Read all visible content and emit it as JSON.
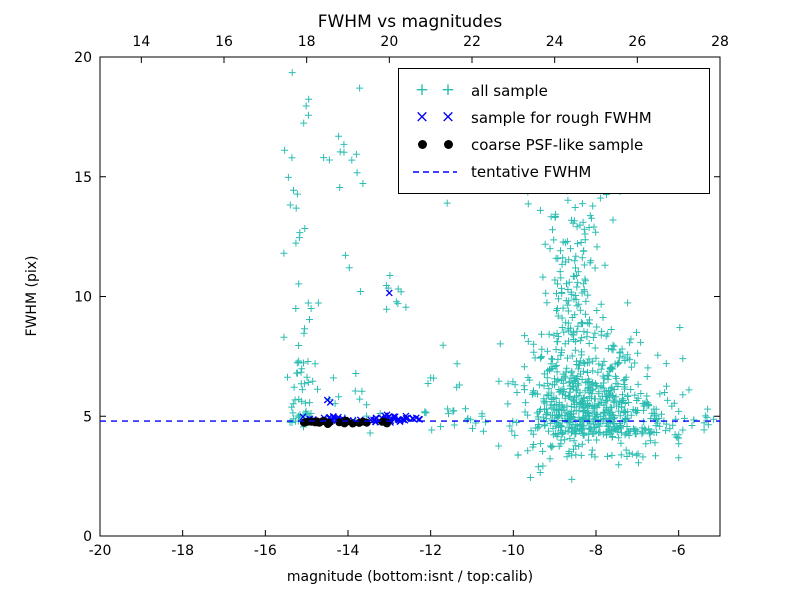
{
  "figure": {
    "title": "FWHM vs magnitudes"
  },
  "axes": {
    "xlabel": "magnitude (bottom:isnt / top:calib)",
    "ylabel": "FWHM (pix)",
    "xlim": [
      -20,
      -5
    ],
    "ylim": [
      0,
      20
    ],
    "top_xlim": [
      13,
      28
    ],
    "x_ticks": [
      {
        "v": -20,
        "label": "-20"
      },
      {
        "v": -18,
        "label": "-18"
      },
      {
        "v": -16,
        "label": "-16"
      },
      {
        "v": -14,
        "label": "-14"
      },
      {
        "v": -12,
        "label": "-12"
      },
      {
        "v": -10,
        "label": "-10"
      },
      {
        "v": -8,
        "label": "-8"
      },
      {
        "v": -6,
        "label": "-6"
      }
    ],
    "top_ticks": [
      {
        "v": 14,
        "label": "14"
      },
      {
        "v": 16,
        "label": "16"
      },
      {
        "v": 18,
        "label": "18"
      },
      {
        "v": 20,
        "label": "20"
      },
      {
        "v": 22,
        "label": "22"
      },
      {
        "v": 24,
        "label": "24"
      },
      {
        "v": 26,
        "label": "26"
      },
      {
        "v": 28,
        "label": "28"
      }
    ],
    "y_ticks": [
      {
        "v": 0,
        "label": "0"
      },
      {
        "v": 5,
        "label": "5"
      },
      {
        "v": 10,
        "label": "10"
      },
      {
        "v": 15,
        "label": "15"
      },
      {
        "v": 20,
        "label": "20"
      }
    ]
  },
  "legend": {
    "items": [
      {
        "label": "all sample",
        "marker": "plus",
        "color": "#2cbdb2"
      },
      {
        "label": "sample for rough FWHM",
        "marker": "x",
        "color": "#0000ff"
      },
      {
        "label": "coarse PSF-like sample",
        "marker": "dot",
        "color": "#000000"
      },
      {
        "label": "tentative FWHM",
        "marker": "dashed-line",
        "color": "#0000ff"
      }
    ]
  },
  "chart_data": {
    "type": "scatter",
    "title": "FWHM vs magnitudes",
    "xlabel": "magnitude (bottom:isnt / top:calib)",
    "ylabel": "FWHM (pix)",
    "xlim": [
      -20,
      -5
    ],
    "ylim": [
      0,
      20
    ],
    "top_axis": {
      "lim": [
        13,
        28
      ],
      "relation": "calib = isnt + 33"
    },
    "grid": false,
    "legend_position": "upper right inside",
    "tentative_fwhm": 4.8,
    "series": [
      {
        "name": "all sample",
        "marker": "plus",
        "color": "#2cbdb2",
        "clusters": [
          {
            "n": 48,
            "x": {
              "dist": "normal",
              "mu": -15.15,
              "sigma": 0.17
            },
            "y": {
              "dist": "halfnormal",
              "base": 4.35,
              "sigma": 2.0,
              "max": 9.5
            }
          },
          {
            "n": 22,
            "x": {
              "dist": "normal",
              "mu": -15.12,
              "sigma": 0.22
            },
            "y": {
              "dist": "uniform",
              "min": 9.0,
              "max": 19.5
            }
          },
          {
            "n": 18,
            "x": {
              "dist": "uniform",
              "min": -14.6,
              "max": -13.2
            },
            "y": {
              "dist": "normal",
              "mu": 5.3,
              "sigma": 0.7,
              "min": 4.3
            }
          },
          {
            "n": 10,
            "x": {
              "dist": "uniform",
              "min": -14.6,
              "max": -13.3
            },
            "y": {
              "dist": "uniform",
              "min": 9.0,
              "max": 17.0
            }
          },
          {
            "n": 8,
            "x": {
              "dist": "normal",
              "mu": -12.95,
              "sigma": 0.15
            },
            "y": {
              "dist": "normal",
              "mu": 9.9,
              "sigma": 0.45
            }
          },
          {
            "n": 620,
            "x": {
              "dist": "normal",
              "mu": -8.2,
              "sigma": 0.85,
              "min": -11.4,
              "max": -5.9
            },
            "y": {
              "dist": "halfnormal",
              "base": 4.25,
              "sigma": 1.9,
              "max": 16.5
            }
          },
          {
            "n": 130,
            "x": {
              "dist": "normal",
              "mu": -8.55,
              "sigma": 0.35
            },
            "y": {
              "dist": "uniform",
              "min": 8.0,
              "max": 14.8
            }
          },
          {
            "n": 30,
            "x": {
              "dist": "normal",
              "mu": -8.6,
              "sigma": 0.9
            },
            "y": {
              "dist": "uniform",
              "min": 13.0,
              "max": 17.6
            }
          },
          {
            "n": 70,
            "x": {
              "dist": "normal",
              "mu": -8.2,
              "sigma": 1.1,
              "min": -11.0,
              "max": -6.0
            },
            "y": {
              "dist": "uniform",
              "min": 3.2,
              "max": 4.35
            }
          },
          {
            "n": 7,
            "x": {
              "dist": "normal",
              "mu": -8.4,
              "sigma": 0.9
            },
            "y": {
              "dist": "uniform",
              "min": 2.3,
              "max": 3.2
            }
          },
          {
            "n": 20,
            "x": {
              "dist": "uniform",
              "min": -12.3,
              "max": -10.6
            },
            "y": {
              "dist": "normal",
              "mu": 4.95,
              "sigma": 0.3
            }
          },
          {
            "n": 6,
            "x": {
              "dist": "uniform",
              "min": -12.4,
              "max": -10.6
            },
            "y": {
              "dist": "uniform",
              "min": 5.8,
              "max": 8.0
            }
          },
          {
            "n": 26,
            "x": {
              "dist": "uniform",
              "min": -6.9,
              "max": -5.15
            },
            "y": {
              "dist": "normal",
              "mu": 4.85,
              "sigma": 0.4
            }
          }
        ],
        "points": [
          [
            -15.35,
            19.35
          ],
          [
            -13.72,
            18.7
          ],
          [
            -14.1,
            16.35
          ],
          [
            -14.45,
            15.7
          ],
          [
            -14.2,
            14.55
          ],
          [
            -12.6,
            9.55
          ],
          [
            -9.9,
            17.4
          ],
          [
            -10.75,
            16.3
          ],
          [
            -11.6,
            13.9
          ],
          [
            -6.3,
            7.2
          ],
          [
            -5.75,
            6.1
          ],
          [
            -5.3,
            5.3
          ],
          [
            -12.0,
            6.6
          ],
          [
            -15.55,
            8.3
          ]
        ]
      },
      {
        "name": "sample for rough FWHM",
        "marker": "x",
        "color": "#0000ff",
        "clusters": [
          {
            "n": 28,
            "x": {
              "dist": "uniform",
              "min": -15.15,
              "max": -13.3
            },
            "y": {
              "dist": "normal",
              "mu": 4.88,
              "sigma": 0.06
            }
          },
          {
            "n": 38,
            "x": {
              "dist": "uniform",
              "min": -13.35,
              "max": -12.25
            },
            "y": {
              "dist": "normal",
              "mu": 4.9,
              "sigma": 0.07
            }
          }
        ],
        "points": [
          [
            -13.0,
            10.15
          ],
          [
            -14.5,
            5.68
          ],
          [
            -14.43,
            5.58
          ]
        ]
      },
      {
        "name": "coarse PSF-like sample",
        "marker": "dot",
        "color": "#000000",
        "clusters": [
          {
            "n": 26,
            "x": {
              "dist": "uniform",
              "min": -15.12,
              "max": -13.0
            },
            "y": {
              "dist": "normal",
              "mu": 4.74,
              "sigma": 0.045
            }
          }
        ],
        "points": []
      },
      {
        "name": "tentative FWHM",
        "marker": "dashed-line",
        "color": "#0000ff",
        "line_y": 4.8
      }
    ]
  }
}
